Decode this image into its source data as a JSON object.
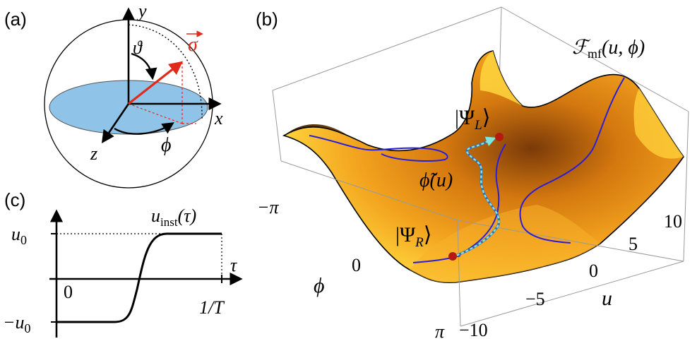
{
  "panels": {
    "a": {
      "label": "(a)",
      "axis_y": "y",
      "axis_x": "x",
      "axis_z": "z",
      "polar_angle": "ϑ",
      "azimuth_angle": "ϕ",
      "vector": "σ",
      "vector_color": "#e02a1c",
      "disk_color": "#8fc4e8"
    },
    "b": {
      "label": "(b)",
      "surface_title": "ℱ",
      "surface_title_sub": "mf",
      "surface_title_args": "(u, ϕ)",
      "psi_L": "|Ψ",
      "psi_L_sub": "L",
      "psi_R": "|Ψ",
      "psi_R_sub": "R",
      "bracket": "⟩",
      "path_label": "ϕ̃(u)",
      "phi_axis_label": "ϕ",
      "phi_ticks": [
        "−π",
        "0",
        "π"
      ],
      "u_axis_label": "u",
      "u_ticks": [
        "10",
        "5",
        "0",
        "−5",
        "−10"
      ],
      "contour_color": "#2a1fd6",
      "path_color": "#7fe6e0",
      "point_color": "#b51a10"
    },
    "c": {
      "label": "(c)",
      "curve_label": "u",
      "curve_label_sub": "inst",
      "curve_label_arg": "(τ)",
      "y_ticks": [
        "u",
        "−u"
      ],
      "y_tick_sub": "0",
      "x_ticks": [
        "0",
        "1/T"
      ],
      "x_axis_label": "τ"
    }
  }
}
